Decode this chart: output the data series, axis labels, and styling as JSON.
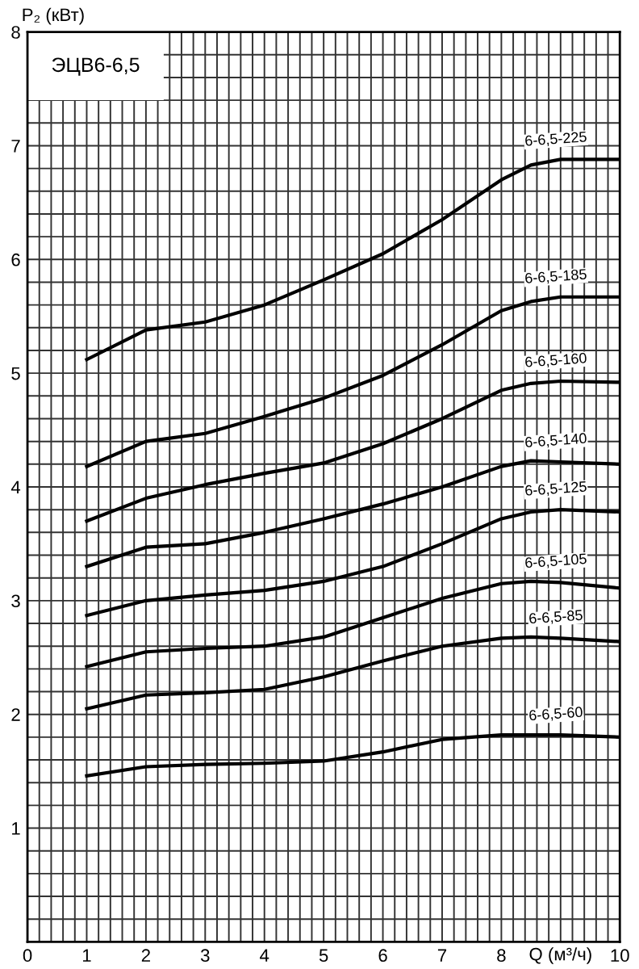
{
  "chart_data": {
    "type": "line",
    "title": "ЭЦВ6-6,5",
    "xlabel": "Q (м³/ч)",
    "ylabel": "P₂ (кВт)",
    "x": [
      1,
      2,
      3,
      4,
      5,
      6,
      7,
      8,
      8.5,
      9,
      10
    ],
    "series": [
      {
        "name": "6-6,5-225",
        "color": "#000000",
        "values": [
          5.12,
          5.38,
          5.45,
          5.6,
          5.82,
          6.05,
          6.35,
          6.7,
          6.83,
          6.88,
          6.88
        ]
      },
      {
        "name": "6-6,5-185",
        "color": "#000000",
        "values": [
          4.18,
          4.4,
          4.47,
          4.62,
          4.78,
          4.98,
          5.25,
          5.55,
          5.63,
          5.67,
          5.67
        ]
      },
      {
        "name": "6-6,5-160",
        "color": "#000000",
        "values": [
          3.7,
          3.9,
          4.02,
          4.12,
          4.21,
          4.38,
          4.6,
          4.85,
          4.91,
          4.93,
          4.92
        ]
      },
      {
        "name": "6-6,5-140",
        "color": "#000000",
        "values": [
          3.3,
          3.47,
          3.5,
          3.6,
          3.72,
          3.85,
          4.0,
          4.18,
          4.23,
          4.22,
          4.2
        ]
      },
      {
        "name": "6-6,5-125",
        "color": "#000000",
        "values": [
          2.87,
          3.0,
          3.05,
          3.09,
          3.17,
          3.3,
          3.5,
          3.72,
          3.78,
          3.8,
          3.78
        ]
      },
      {
        "name": "6-6,5-105",
        "color": "#000000",
        "values": [
          2.42,
          2.55,
          2.58,
          2.6,
          2.68,
          2.85,
          3.02,
          3.15,
          3.17,
          3.16,
          3.11
        ]
      },
      {
        "name": "6-6,5-85",
        "color": "#000000",
        "values": [
          2.05,
          2.17,
          2.19,
          2.22,
          2.33,
          2.47,
          2.6,
          2.67,
          2.68,
          2.67,
          2.64
        ]
      },
      {
        "name": "6-6,5-60",
        "color": "#000000",
        "values": [
          1.46,
          1.54,
          1.56,
          1.57,
          1.59,
          1.67,
          1.78,
          1.82,
          1.82,
          1.82,
          1.8
        ]
      }
    ],
    "xlim": [
      0,
      10
    ],
    "ylim": [
      0,
      8
    ],
    "xticks": [
      0,
      {
        "value": 0.2,
        "label": null
      },
      {
        "value": 0.4,
        "label": null
      },
      {
        "value": 0.6,
        "label": null
      },
      {
        "value": 0.8,
        "label": null
      },
      1,
      {
        "value": 1.2,
        "label": null
      },
      {
        "value": 1.4,
        "label": null
      },
      {
        "value": 1.6,
        "label": null
      },
      {
        "value": 1.8,
        "label": null
      },
      2,
      {
        "value": 2.2,
        "label": null
      },
      {
        "value": 2.4,
        "label": null
      },
      {
        "value": 2.6,
        "label": null
      },
      {
        "value": 2.8,
        "label": null
      },
      3,
      {
        "value": 3.2,
        "label": null
      },
      {
        "value": 3.4,
        "label": null
      },
      {
        "value": 3.6,
        "label": null
      },
      {
        "value": 3.8,
        "label": null
      },
      4,
      {
        "value": 4.2,
        "label": null
      },
      {
        "value": 4.4,
        "label": null
      },
      {
        "value": 4.6,
        "label": null
      },
      {
        "value": 4.8,
        "label": null
      },
      5,
      {
        "value": 5.2,
        "label": null
      },
      {
        "value": 5.4,
        "label": null
      },
      {
        "value": 5.6,
        "label": null
      },
      {
        "value": 5.8,
        "label": null
      },
      6,
      {
        "value": 6.2,
        "label": null
      },
      {
        "value": 6.4,
        "label": null
      },
      {
        "value": 6.6,
        "label": null
      },
      {
        "value": 6.8,
        "label": null
      },
      7,
      {
        "value": 7.2,
        "label": null
      },
      {
        "value": 7.4,
        "label": null
      },
      {
        "value": 7.6,
        "label": null
      },
      {
        "value": 7.8,
        "label": null
      },
      8,
      {
        "value": 8.2,
        "label": null
      },
      {
        "value": 8.4,
        "label": null
      },
      {
        "value": 8.6,
        "label": null
      },
      {
        "value": 8.8,
        "label": null
      },
      {
        "value": 9,
        "label": null
      },
      {
        "value": 9.2,
        "label": null
      },
      {
        "value": 9.4,
        "label": null
      },
      {
        "value": 9.6,
        "label": null
      },
      {
        "value": 9.8,
        "label": null
      },
      10
    ],
    "yticks": [
      {
        "value": 0,
        "label": null
      },
      {
        "value": 0.2,
        "label": null
      },
      {
        "value": 0.4,
        "label": null
      },
      {
        "value": 0.6,
        "label": null
      },
      {
        "value": 0.8,
        "label": null
      },
      1,
      {
        "value": 1.2,
        "label": null
      },
      {
        "value": 1.4,
        "label": null
      },
      {
        "value": 1.6,
        "label": null
      },
      {
        "value": 1.8,
        "label": null
      },
      2,
      {
        "value": 2.2,
        "label": null
      },
      {
        "value": 2.4,
        "label": null
      },
      {
        "value": 2.6,
        "label": null
      },
      {
        "value": 2.8,
        "label": null
      },
      3,
      {
        "value": 3.2,
        "label": null
      },
      {
        "value": 3.4,
        "label": null
      },
      {
        "value": 3.6,
        "label": null
      },
      {
        "value": 3.8,
        "label": null
      },
      4,
      {
        "value": 4.2,
        "label": null
      },
      {
        "value": 4.4,
        "label": null
      },
      {
        "value": 4.6,
        "label": null
      },
      {
        "value": 4.8,
        "label": null
      },
      5,
      {
        "value": 5.2,
        "label": null
      },
      {
        "value": 5.4,
        "label": null
      },
      {
        "value": 5.6,
        "label": null
      },
      {
        "value": 5.8,
        "label": null
      },
      6,
      {
        "value": 6.2,
        "label": null
      },
      {
        "value": 6.4,
        "label": null
      },
      {
        "value": 6.6,
        "label": null
      },
      {
        "value": 6.8,
        "label": null
      },
      7,
      {
        "value": 7.2,
        "label": null
      },
      {
        "value": 7.4,
        "label": null
      },
      {
        "value": 7.6,
        "label": null
      },
      {
        "value": 7.8,
        "label": null
      },
      8
    ],
    "grid": true,
    "legend": false,
    "marker": "none",
    "line_style": "solid"
  }
}
